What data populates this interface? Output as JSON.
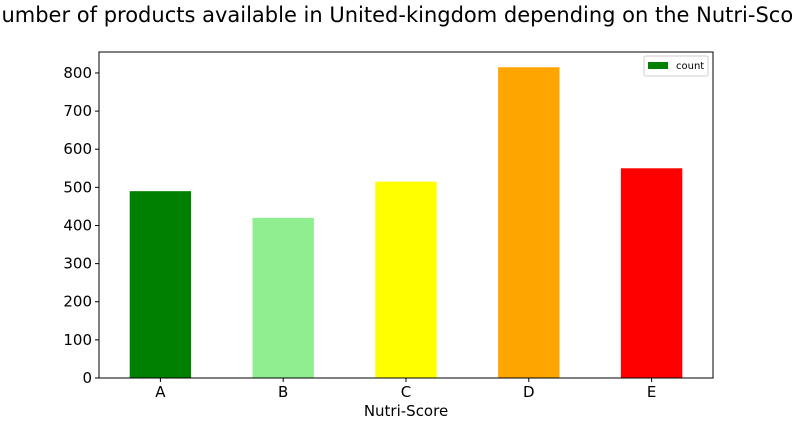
{
  "chart_data": {
    "type": "bar",
    "title": "Number of products available in United-kingdom depending on the Nutri-Score",
    "xlabel": "Nutri-Score",
    "ylabel": "",
    "categories": [
      "A",
      "B",
      "C",
      "D",
      "E"
    ],
    "series": [
      {
        "name": "count",
        "values": [
          490,
          420,
          515,
          815,
          550
        ],
        "colors": [
          "#008000",
          "#90ee90",
          "#ffff00",
          "#ffa500",
          "#ff0000"
        ]
      }
    ],
    "ylim": [
      0,
      855
    ],
    "yticks": [
      0,
      100,
      200,
      300,
      400,
      500,
      600,
      700,
      800
    ],
    "legend_position": "top-right",
    "legend_color": "#008000",
    "grid": false
  }
}
